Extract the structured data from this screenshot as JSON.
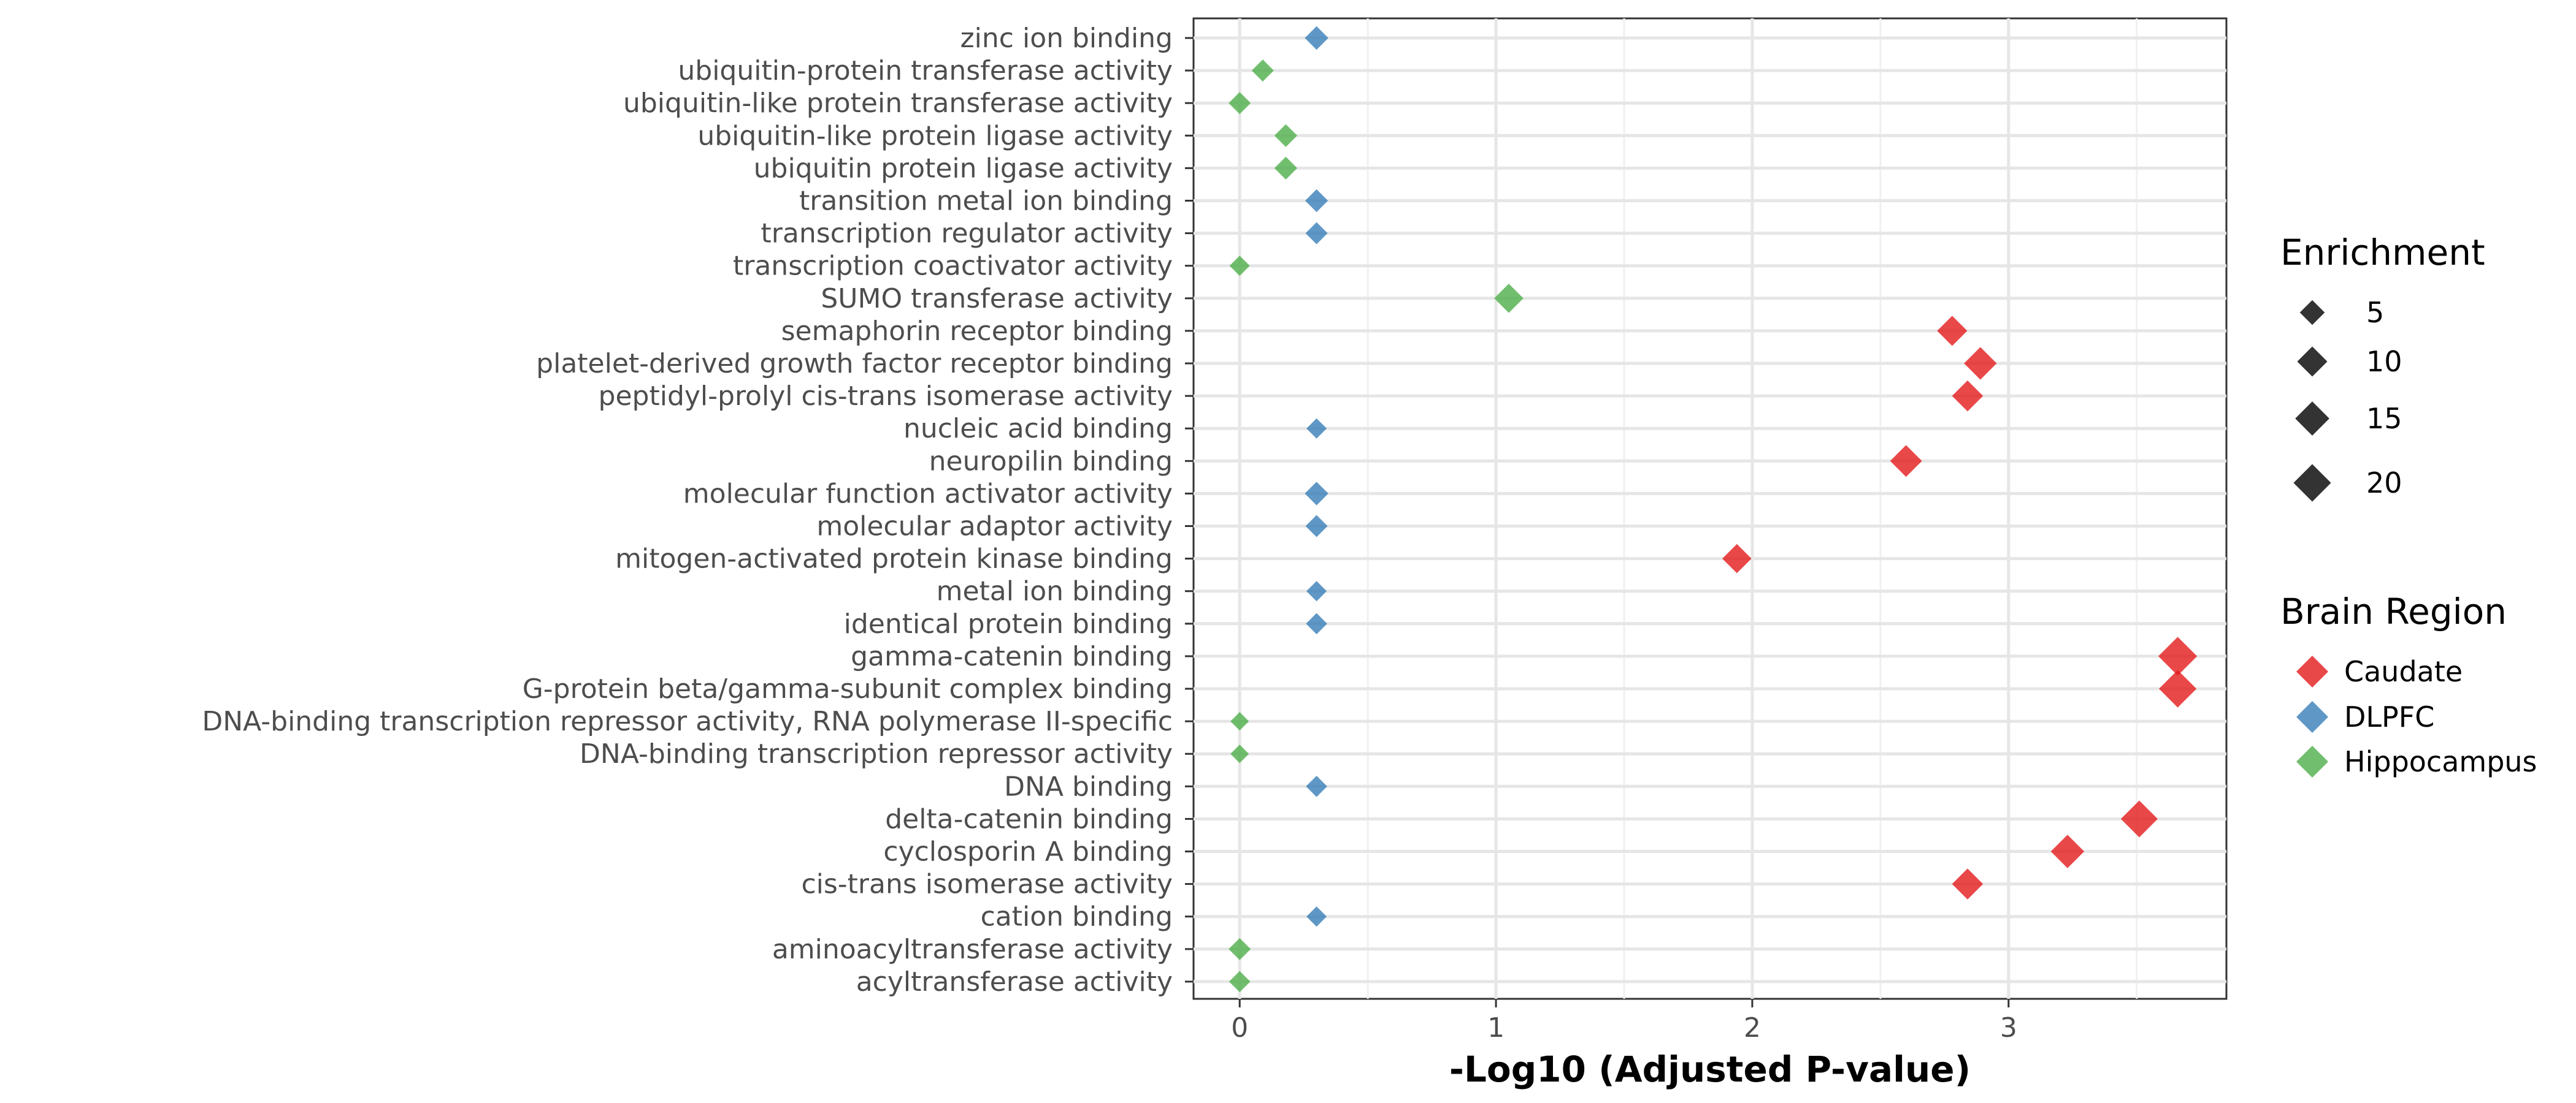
{
  "chart_data": {
    "type": "scatter",
    "title": "",
    "xlabel": "-Log10 (Adjusted P-value)",
    "ylabel": "",
    "xlim": [
      -0.18,
      3.85
    ],
    "xticks": [
      0,
      1,
      2,
      3
    ],
    "grid": true,
    "legend_position": "right",
    "categories": [
      "zinc ion binding",
      "ubiquitin-protein transferase activity",
      "ubiquitin-like protein transferase activity",
      "ubiquitin-like protein ligase activity",
      "ubiquitin protein ligase activity",
      "transition metal ion binding",
      "transcription regulator activity",
      "transcription coactivator activity",
      "SUMO transferase activity",
      "semaphorin receptor binding",
      "platelet-derived growth factor receptor binding",
      "peptidyl-prolyl cis-trans isomerase activity",
      "nucleic acid binding",
      "neuropilin binding",
      "molecular function activator activity",
      "molecular adaptor activity",
      "mitogen-activated protein kinase binding",
      "metal ion binding",
      "identical protein binding",
      "gamma-catenin binding",
      "G-protein beta/gamma-subunit complex binding",
      "DNA-binding transcription repressor activity, RNA polymerase II-specific",
      "DNA-binding transcription repressor activity",
      "DNA binding",
      "delta-catenin binding",
      "cyclosporin A binding",
      "cis-trans isomerase activity",
      "cation binding",
      "aminoacyltransferase activity",
      "acyltransferase activity"
    ],
    "series": [
      {
        "name": "Caudate",
        "color": "#e41a1c",
        "points": [
          {
            "term": "semaphorin receptor binding",
            "x": 2.78,
            "enrichment": 10
          },
          {
            "term": "platelet-derived growth factor receptor binding",
            "x": 2.89,
            "enrichment": 13
          },
          {
            "term": "peptidyl-prolyl cis-trans isomerase activity",
            "x": 2.84,
            "enrichment": 11
          },
          {
            "term": "neuropilin binding",
            "x": 2.6,
            "enrichment": 12
          },
          {
            "term": "mitogen-activated protein kinase binding",
            "x": 1.94,
            "enrichment": 9
          },
          {
            "term": "gamma-catenin binding",
            "x": 3.66,
            "enrichment": 22
          },
          {
            "term": "G-protein beta/gamma-subunit complex binding",
            "x": 3.66,
            "enrichment": 20
          },
          {
            "term": "delta-catenin binding",
            "x": 3.51,
            "enrichment": 19
          },
          {
            "term": "cyclosporin A binding",
            "x": 3.23,
            "enrichment": 14
          },
          {
            "term": "cis-trans isomerase activity",
            "x": 2.84,
            "enrichment": 11
          }
        ]
      },
      {
        "name": "DLPFC",
        "color": "#377eb8",
        "points": [
          {
            "term": "zinc ion binding",
            "x": 0.3,
            "enrichment": 4
          },
          {
            "term": "transition metal ion binding",
            "x": 0.3,
            "enrichment": 3.5
          },
          {
            "term": "transcription regulator activity",
            "x": 0.3,
            "enrichment": 3
          },
          {
            "term": "nucleic acid binding",
            "x": 0.3,
            "enrichment": 2
          },
          {
            "term": "molecular function activator activity",
            "x": 0.3,
            "enrichment": 4
          },
          {
            "term": "molecular adaptor activity",
            "x": 0.3,
            "enrichment": 3
          },
          {
            "term": "metal ion binding",
            "x": 0.3,
            "enrichment": 2
          },
          {
            "term": "identical protein binding",
            "x": 0.3,
            "enrichment": 2.5
          },
          {
            "term": "DNA binding",
            "x": 0.3,
            "enrichment": 2.5
          },
          {
            "term": "cation binding",
            "x": 0.3,
            "enrichment": 2
          }
        ]
      },
      {
        "name": "Hippocampus",
        "color": "#4daf4a",
        "points": [
          {
            "term": "ubiquitin-protein transferase activity",
            "x": 0.09,
            "enrichment": 3
          },
          {
            "term": "ubiquitin-like protein transferase activity",
            "x": 0.0,
            "enrichment": 3
          },
          {
            "term": "ubiquitin-like protein ligase activity",
            "x": 0.18,
            "enrichment": 3.5
          },
          {
            "term": "ubiquitin protein ligase activity",
            "x": 0.18,
            "enrichment": 3.5
          },
          {
            "term": "transcription coactivator activity",
            "x": 0.0,
            "enrichment": 2
          },
          {
            "term": "SUMO transferase activity",
            "x": 1.05,
            "enrichment": 9
          },
          {
            "term": "DNA-binding transcription repressor activity, RNA polymerase II-specific",
            "x": 0.0,
            "enrichment": 1.2
          },
          {
            "term": "DNA-binding transcription repressor activity",
            "x": 0.0,
            "enrichment": 1.2
          },
          {
            "term": "aminoacyltransferase activity",
            "x": 0.0,
            "enrichment": 3
          },
          {
            "term": "acyltransferase activity",
            "x": 0.0,
            "enrichment": 2.5
          }
        ]
      }
    ],
    "size_legend": {
      "title": "Enrichment",
      "values": [
        5,
        10,
        15,
        20
      ],
      "labels": [
        "5",
        "10",
        "15",
        "20"
      ],
      "color": "#333333"
    },
    "color_legend": {
      "title": "Brain Region",
      "labels": [
        "Caudate",
        "DLPFC",
        "Hippocampus"
      ],
      "colors": [
        "#e41a1c",
        "#377eb8",
        "#4daf4a"
      ]
    }
  }
}
